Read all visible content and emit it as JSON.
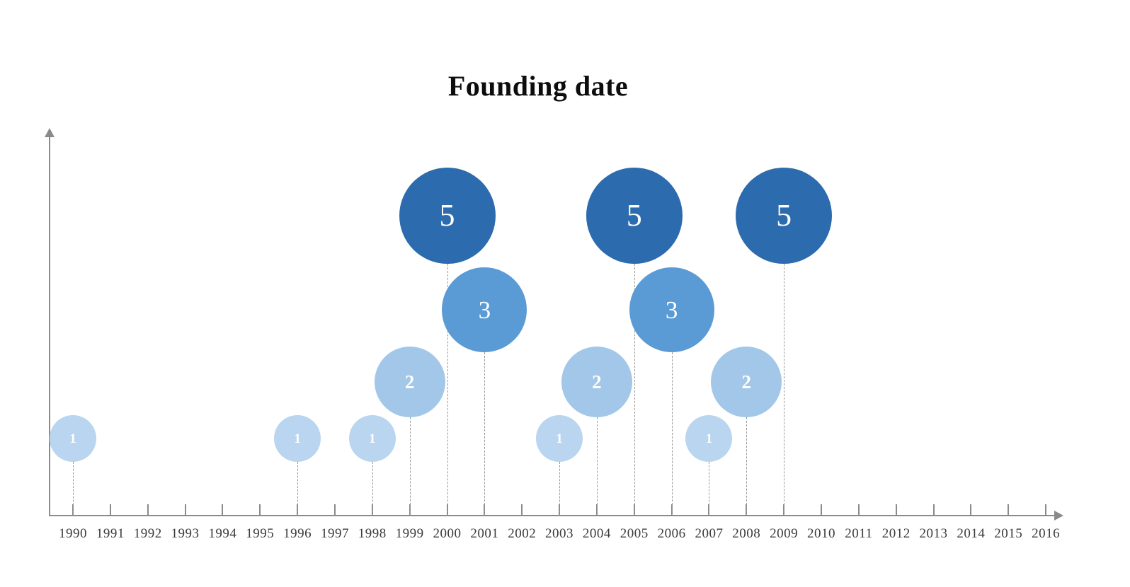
{
  "chart_data": {
    "type": "bubble",
    "title": "Founding date",
    "xlabel": "",
    "ylabel": "",
    "legend": "none",
    "grid": false,
    "x_axis": {
      "start": 1990,
      "end": 2016,
      "tick_years": [
        1990,
        1991,
        1992,
        1993,
        1994,
        1995,
        1996,
        1997,
        1998,
        1999,
        2000,
        2001,
        2002,
        2003,
        2004,
        2005,
        2006,
        2007,
        2008,
        2009,
        2010,
        2011,
        2012,
        2013,
        2014,
        2015,
        2016
      ]
    },
    "points": [
      {
        "year": 1990,
        "count": 1
      },
      {
        "year": 1996,
        "count": 1
      },
      {
        "year": 1998,
        "count": 1
      },
      {
        "year": 1999,
        "count": 2
      },
      {
        "year": 2000,
        "count": 5
      },
      {
        "year": 2001,
        "count": 3
      },
      {
        "year": 2003,
        "count": 1
      },
      {
        "year": 2004,
        "count": 2
      },
      {
        "year": 2005,
        "count": 5
      },
      {
        "year": 2006,
        "count": 3
      },
      {
        "year": 2007,
        "count": 1
      },
      {
        "year": 2008,
        "count": 2
      },
      {
        "year": 2009,
        "count": 5
      }
    ],
    "bubble_colors": {
      "1": "#b9d5ef",
      "2": "#a3c7e9",
      "3": "#5b9bd5",
      "5": "#2c6bad"
    },
    "colors": {
      "axis": "#8a8a8a",
      "stem": "#999999",
      "label_text": "#3a3a3a",
      "bubble_value_text": "#ffffff",
      "title_text": "#0d0d0d"
    }
  }
}
